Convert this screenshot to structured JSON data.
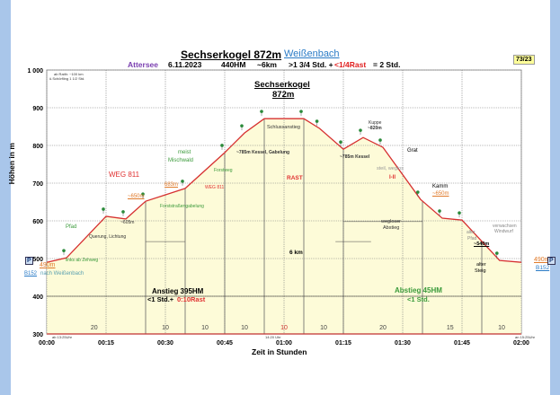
{
  "header": {
    "title": "Sechserkogel 872m",
    "link": "Weißenbach",
    "region": "Attersee",
    "date": "6.11.2023",
    "hm": "440HM",
    "distance": "~6km",
    "time_prefix": ">1 3/4 Std. +",
    "rest": "<1/4Rast",
    "time_suffix": "= 2 Std.",
    "badge": "73/23"
  },
  "chart_data": {
    "type": "area",
    "title": "Sechserkogel 872m",
    "xlabel": "Zeit in Stunden",
    "ylabel": "Höhen in m",
    "xlim": [
      0,
      120
    ],
    "ylim": [
      300,
      1000
    ],
    "x_ticks": [
      "00:00",
      "00:15",
      "00:30",
      "00:45",
      "01:00",
      "01:15",
      "01:30",
      "01:45",
      "02:00"
    ],
    "y_ticks": [
      "300",
      "400",
      "500",
      "600",
      "700",
      "800",
      "900",
      "1 000"
    ],
    "profile": {
      "x_min": [
        0,
        5,
        15,
        20,
        25,
        35,
        45,
        50,
        55,
        65,
        69,
        75,
        80,
        85,
        94.5,
        100,
        105,
        114.5,
        120
      ],
      "elev_m": [
        490,
        502,
        612,
        605,
        652,
        686,
        781,
        833,
        871,
        871,
        845,
        790,
        821,
        795,
        657,
        607,
        602,
        495,
        490
      ]
    },
    "section_dividers_min": [
      25,
      35,
      45,
      55,
      65,
      75,
      95,
      110
    ],
    "section_minutes": [
      {
        "label": "20",
        "at": 12
      },
      {
        "label": "10",
        "at": 30
      },
      {
        "label": "10",
        "at": 40
      },
      {
        "label": "10",
        "at": 50
      },
      {
        "label": "10",
        "at": 60
      },
      {
        "label": "10",
        "at": 70
      },
      {
        "label": "20",
        "at": 85
      },
      {
        "label": "15",
        "at": 102
      },
      {
        "label": "10",
        "at": 115
      }
    ]
  },
  "annotations": {
    "top_note1": "ab Raith: ~100 km",
    "top_note2": "ü.Schörfling 1 1/2 Std.",
    "summit1": "Sechserkogel",
    "summit2": "872m",
    "weg": "WEG 811",
    "pfad": "Pfad",
    "querung": "Querung, Lichtung",
    "links": "links ab Zehweg",
    "m605": "~605m",
    "m650": "~650m",
    "m683": "683m",
    "weg811b": "WEG 811",
    "forst": "Forststraßengabelung",
    "meist": "meist",
    "misch": "Mischwald",
    "forstweg": "Forstweg",
    "kessel1": "~785m Kessel, Gabelung",
    "schluss": "Schlussanstieg",
    "rast": "RAST",
    "kuppe": "Kuppe",
    "m820": "~820m",
    "kessel2": "~785m Kessel",
    "grat": "Grat",
    "steil": "steil, weglos",
    "grade": "I-II",
    "kamm": "Kamm",
    "m650b": "~650m",
    "wegloser": "wegloser",
    "abstieg_w": "Abstieg",
    "alter_pfad1": "alter",
    "alter_pfad2": "Pfad",
    "verwachsen1": "verwachsen",
    "verwachsen2": "Windwurf",
    "m540": "~540m",
    "alter1": "alter",
    "alter2": "Steig",
    "km": "6 km",
    "start_m": "490m",
    "end_m": "490m",
    "parking": "P",
    "road_left": "B152",
    "road_left_suffix": "nach Weißenbach",
    "road_right": "B152",
    "ascent": "Anstieg 395HM",
    "ascent_time": "<1 Std.+",
    "ascent_rest": "0:10Rast",
    "descent": "Abstieg 45HM",
    "descent_time": "<1 Std.",
    "start_time": "ab 13:25Uhr",
    "mid_time": "14:20 Uhr",
    "end_time": "an 15:25Uhr"
  }
}
